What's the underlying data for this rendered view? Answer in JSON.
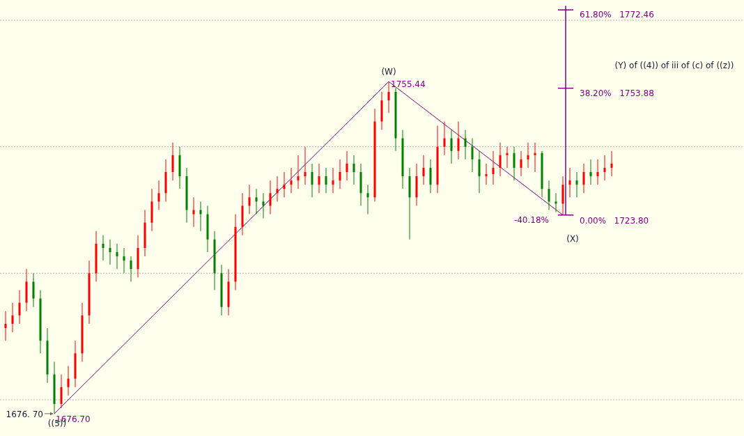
{
  "chart_data": {
    "type": "candlestick",
    "categories": [
      null,
      null,
      null,
      null,
      null,
      null,
      null,
      null,
      null,
      null,
      null,
      null,
      null,
      null,
      null,
      null,
      null,
      null,
      null,
      null,
      null,
      null,
      null,
      null,
      null,
      null,
      null,
      null,
      null,
      null,
      null,
      null,
      null,
      null,
      null,
      null,
      null,
      null,
      null,
      null,
      null,
      null,
      null,
      null,
      null,
      null,
      null,
      null,
      null,
      null,
      null,
      null,
      null,
      null,
      null,
      null,
      null,
      null,
      null,
      null,
      null,
      null,
      null,
      null,
      null,
      null,
      null,
      null,
      null,
      null,
      null,
      null,
      null,
      null,
      null,
      null,
      null,
      null,
      null,
      null,
      null,
      null,
      null,
      null,
      null,
      null,
      null,
      null
    ],
    "ohlc": [
      [
        1697,
        1701,
        1694,
        1698
      ],
      [
        1698,
        1703,
        1696,
        1700
      ],
      [
        1700,
        1706,
        1698,
        1703
      ],
      [
        1703,
        1711,
        1701,
        1708
      ],
      [
        1708,
        1710,
        1702,
        1704
      ],
      [
        1704,
        1706,
        1691,
        1694
      ],
      [
        1694,
        1697,
        1684,
        1686
      ],
      [
        1686,
        1689,
        1676.7,
        1679
      ],
      [
        1679,
        1686,
        1678,
        1683
      ],
      [
        1683,
        1688,
        1681,
        1685
      ],
      [
        1685,
        1694,
        1683,
        1691
      ],
      [
        1691,
        1703,
        1689,
        1700
      ],
      [
        1700,
        1713,
        1698,
        1710
      ],
      [
        1710,
        1720,
        1708,
        1717
      ],
      [
        1717,
        1719,
        1713,
        1716
      ],
      [
        1716,
        1718,
        1712,
        1715
      ],
      [
        1715,
        1717,
        1711,
        1714
      ],
      [
        1714,
        1716,
        1710,
        1713
      ],
      [
        1713,
        1714,
        1708,
        1711
      ],
      [
        1711,
        1719,
        1709,
        1716
      ],
      [
        1716,
        1725,
        1714,
        1722
      ],
      [
        1722,
        1730,
        1720,
        1727
      ],
      [
        1727,
        1732,
        1725,
        1729
      ],
      [
        1729,
        1737,
        1727,
        1734
      ],
      [
        1734,
        1741,
        1732,
        1738
      ],
      [
        1738,
        1740,
        1730,
        1733
      ],
      [
        1733,
        1735,
        1722,
        1725
      ],
      [
        1724,
        1728,
        1721,
        1725
      ],
      [
        1725,
        1727,
        1720,
        1724
      ],
      [
        1724,
        1726,
        1715,
        1718
      ],
      [
        1718,
        1720,
        1706,
        1710
      ],
      [
        1710,
        1712,
        1700,
        1702
      ],
      [
        1702,
        1711,
        1700,
        1708
      ],
      [
        1708,
        1724,
        1706,
        1721
      ],
      [
        1721,
        1729,
        1719,
        1726
      ],
      [
        1726,
        1731,
        1724,
        1728
      ],
      [
        1728,
        1730,
        1724,
        1727
      ],
      [
        1727,
        1729,
        1723,
        1726
      ],
      [
        1726,
        1732,
        1724,
        1729
      ],
      [
        1729,
        1733,
        1727,
        1730
      ],
      [
        1730,
        1734,
        1728,
        1731
      ],
      [
        1731,
        1735,
        1729,
        1732
      ],
      [
        1732,
        1738,
        1730,
        1733
      ],
      [
        1733,
        1740,
        1731,
        1734
      ],
      [
        1734,
        1736,
        1728,
        1731
      ],
      [
        1731,
        1736,
        1729,
        1733
      ],
      [
        1733,
        1735,
        1729,
        1731
      ],
      [
        1731,
        1735,
        1729,
        1732
      ],
      [
        1732,
        1737,
        1730,
        1734
      ],
      [
        1734,
        1739,
        1732,
        1736
      ],
      [
        1736,
        1738,
        1731,
        1734
      ],
      [
        1734,
        1736,
        1726,
        1729
      ],
      [
        1729,
        1731,
        1724,
        1728
      ],
      [
        1728,
        1749,
        1727,
        1746
      ],
      [
        1746,
        1753,
        1744,
        1751
      ],
      [
        1751,
        1755.44,
        1748,
        1753
      ],
      [
        1753,
        1754,
        1739,
        1742
      ],
      [
        1742,
        1744,
        1730,
        1733
      ],
      [
        1733,
        1735,
        1718,
        1728
      ],
      [
        1728,
        1736,
        1726,
        1733
      ],
      [
        1733,
        1738,
        1731,
        1735
      ],
      [
        1735,
        1737,
        1729,
        1731
      ],
      [
        1731,
        1745,
        1729,
        1740
      ],
      [
        1740,
        1746,
        1738,
        1742
      ],
      [
        1742,
        1744,
        1736,
        1739
      ],
      [
        1739,
        1746,
        1737,
        1742
      ],
      [
        1742,
        1744,
        1737,
        1740
      ],
      [
        1740,
        1742,
        1734,
        1737
      ],
      [
        1737,
        1739,
        1729,
        1733
      ],
      [
        1733,
        1736,
        1731,
        1733.5
      ],
      [
        1733.5,
        1739,
        1731,
        1735
      ],
      [
        1735,
        1741,
        1733,
        1738
      ],
      [
        1738,
        1740,
        1735,
        1738.5
      ],
      [
        1738.5,
        1740,
        1732,
        1735
      ],
      [
        1735,
        1739,
        1733,
        1737
      ],
      [
        1737,
        1741,
        1735,
        1738
      ],
      [
        1738,
        1741,
        1734,
        1738.5
      ],
      [
        1738.5,
        1739,
        1728,
        1730
      ],
      [
        1730,
        1732,
        1725,
        1727
      ],
      [
        1727,
        1729,
        1724.5,
        1726.5
      ],
      [
        1726.5,
        1733,
        1723.8,
        1731
      ],
      [
        1731,
        1735,
        1728,
        1732
      ],
      [
        1732,
        1734,
        1728,
        1731
      ],
      [
        1731,
        1736,
        1729,
        1734
      ],
      [
        1734,
        1737,
        1731,
        1733
      ],
      [
        1733,
        1737,
        1731,
        1734
      ],
      [
        1734,
        1738,
        1732,
        1735
      ],
      [
        1735,
        1739,
        1733,
        1736
      ]
    ],
    "colors": [
      "#ff0000",
      "#ff0000",
      "#ff0000",
      "#ff0000",
      "#008000",
      "#008000",
      "#008000",
      "#008000",
      "#ff0000",
      "#ff0000",
      "#ff0000",
      "#ff0000",
      "#ff0000",
      "#ff0000",
      "#008000",
      "#008000",
      "#008000",
      "#008000",
      "#008000",
      "#ff0000",
      "#ff0000",
      "#ff0000",
      "#ff0000",
      "#ff0000",
      "#ff0000",
      "#008000",
      "#008000",
      "#ff0000",
      "#008000",
      "#008000",
      "#008000",
      "#008000",
      "#ff0000",
      "#ff0000",
      "#ff0000",
      "#ff0000",
      "#008000",
      "#008000",
      "#ff0000",
      "#ff0000",
      "#ff0000",
      "#ff0000",
      "#ff0000",
      "#ff0000",
      "#008000",
      "#ff0000",
      "#008000",
      "#ff0000",
      "#ff0000",
      "#ff0000",
      "#008000",
      "#008000",
      "#008000",
      "#ff0000",
      "#ff0000",
      "#ff0000",
      "#008000",
      "#008000",
      "#008000",
      "#ff0000",
      "#ff0000",
      "#008000",
      "#ff0000",
      "#ff0000",
      "#008000",
      "#ff0000",
      "#008000",
      "#008000",
      "#008000",
      "#ff0000",
      "#ff0000",
      "#ff0000",
      "#ff0000",
      "#008000",
      "#ff0000",
      "#ff0000",
      "#ff0000",
      "#008000",
      "#008000",
      "#008000",
      "#ff0000",
      "#ff0000",
      "#008000",
      "#ff0000",
      "#008000",
      "#ff0000",
      "#ff0000",
      "#ff0000"
    ],
    "ylim": [
      1671.4,
      1774.8
    ],
    "yticks": [
      {
        "value": 1680,
        "label": null
      },
      {
        "value": 1710,
        "label": null
      },
      {
        "value": 1740,
        "label": null
      },
      {
        "value": 1770,
        "label": null
      }
    ],
    "grid": "y",
    "ref_lines": [
      {
        "axis": "y",
        "value": 1772.46,
        "label": "61.80%   1772.46",
        "color": "#800080"
      },
      {
        "axis": "y",
        "value": 1753.88,
        "label": "38.20%   1753.88",
        "color": "#800080"
      },
      {
        "axis": "y",
        "value": 1723.8,
        "label": "0.00%   1723.80",
        "color": "#800080"
      }
    ],
    "annotations": [
      {
        "text": "((5))",
        "y": 1676.7
      },
      "1676.70",
      "1676. 70",
      {
        "text": "(W)",
        "y": 1755.44
      },
      "1755.44",
      "-40.18%",
      {
        "text": "(X)",
        "y": 1723.8
      },
      "(Y) of ((4)) of iii of (c) of ((z))"
    ]
  }
}
